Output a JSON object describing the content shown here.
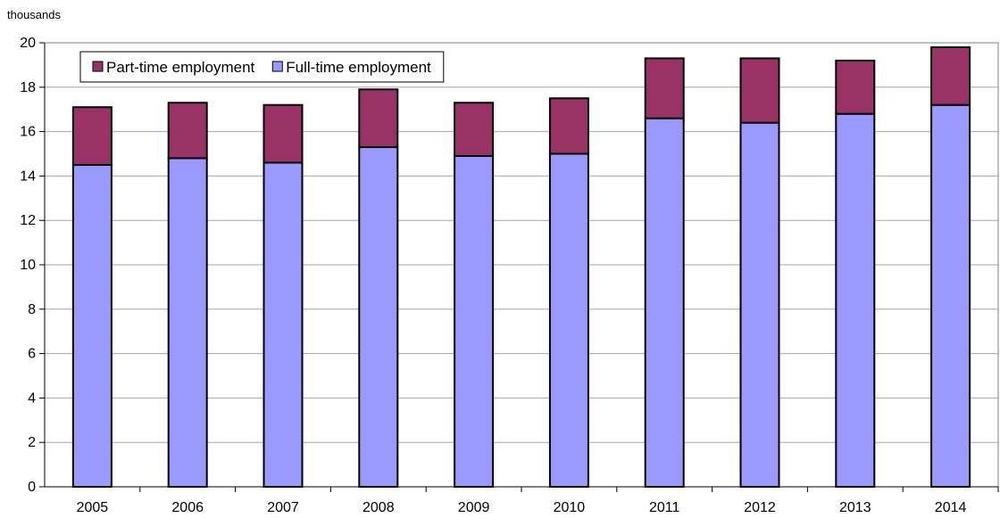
{
  "chart_data": {
    "type": "bar",
    "stacked": true,
    "ylabel": "thousands",
    "categories": [
      "2005",
      "2006",
      "2007",
      "2008",
      "2009",
      "2010",
      "2011",
      "2012",
      "2013",
      "2014"
    ],
    "series": [
      {
        "name": "Full-time employment",
        "color": "#9999ff",
        "values": [
          14.5,
          14.8,
          14.6,
          15.3,
          14.9,
          15.0,
          16.6,
          16.4,
          16.8,
          17.2
        ]
      },
      {
        "name": "Part-time employment",
        "color": "#993366",
        "values": [
          2.6,
          2.5,
          2.6,
          2.6,
          2.4,
          2.5,
          2.7,
          2.9,
          2.4,
          2.6
        ]
      }
    ],
    "ylim": [
      0,
      20
    ],
    "yticks": [
      0,
      2,
      4,
      6,
      8,
      10,
      12,
      14,
      16,
      18,
      20
    ],
    "grid": true,
    "legend_placement": "top-left",
    "legend_order": [
      "Part-time employment",
      "Full-time employment"
    ]
  }
}
